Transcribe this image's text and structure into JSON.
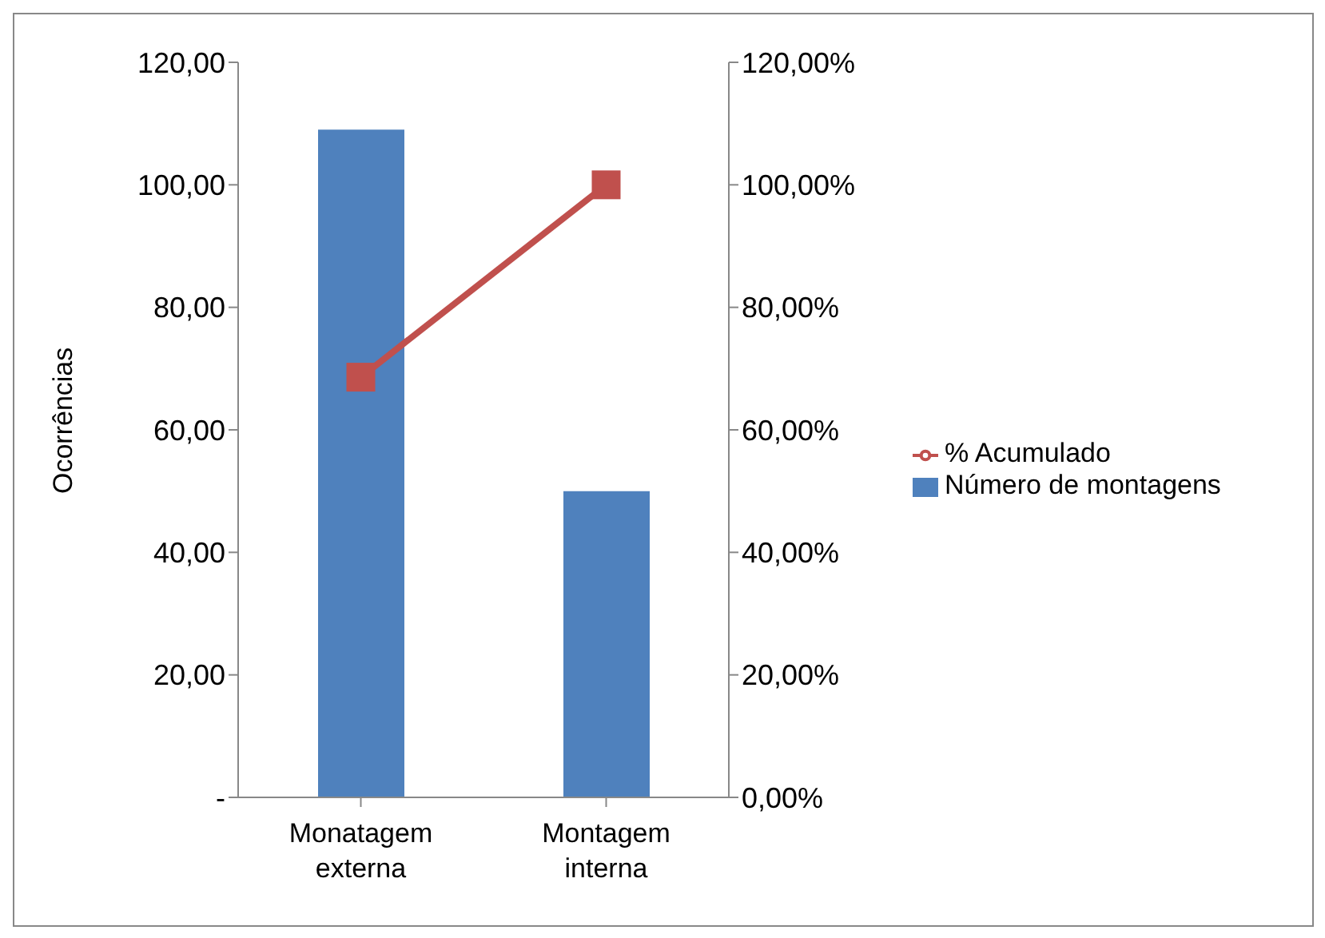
{
  "chart_data": {
    "type": "bar",
    "categories": [
      "Monatagem externa",
      "Montagem interna"
    ],
    "ylabel": "Ocorrências",
    "series": [
      {
        "name": "Número de montagens",
        "color": "#4f81bd",
        "values": [
          109,
          50
        ]
      },
      {
        "name": "% Acumulado",
        "type": "line",
        "axis": "y2",
        "color": "#c0504d",
        "values": [
          68.6,
          100
        ],
        "marker": "square",
        "line_style": "solid"
      }
    ],
    "ylim": [
      0,
      120
    ],
    "yticks": [
      {
        "value": 0,
        "label": "-"
      },
      {
        "value": 20,
        "label": "20,00"
      },
      {
        "value": 40,
        "label": "40,00"
      },
      {
        "value": 60,
        "label": "60,00"
      },
      {
        "value": 80,
        "label": "80,00"
      },
      {
        "value": 100,
        "label": "100,00"
      },
      {
        "value": 120,
        "label": "120,00"
      }
    ],
    "y2lim": [
      0,
      120
    ],
    "y2ticks": [
      {
        "value": 0,
        "label": "0,00%"
      },
      {
        "value": 20,
        "label": "20,00%"
      },
      {
        "value": 40,
        "label": "40,00%"
      },
      {
        "value": 60,
        "label": "60,00%"
      },
      {
        "value": 80,
        "label": "80,00%"
      },
      {
        "value": 100,
        "label": "100,00%"
      },
      {
        "value": 120,
        "label": "120,00%"
      }
    ],
    "grid": false,
    "legend": "right"
  }
}
